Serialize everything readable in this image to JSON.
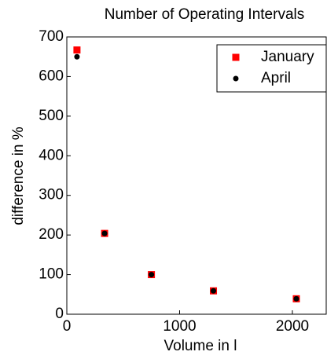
{
  "chart_data": {
    "type": "scatter",
    "title": "Number of Operating Intervals",
    "x_label": "Volume in l",
    "y_label": "difference in %",
    "xlim": [
      0,
      2300
    ],
    "xticks": [
      0,
      1000,
      2000
    ],
    "ylim": [
      0,
      700
    ],
    "yticks": [
      0,
      100,
      200,
      300,
      400,
      500,
      600,
      700
    ],
    "legend": "upper right",
    "series": [
      {
        "name": "January",
        "color": "#ff0000",
        "marker": "square",
        "x": [
          90,
          335,
          750,
          1300,
          2035
        ],
        "values": [
          667,
          204,
          100,
          59,
          39
        ]
      },
      {
        "name": "April",
        "color": "#000000",
        "marker": "circle",
        "x": [
          90,
          335,
          750,
          1300,
          2035
        ],
        "values": [
          650,
          204,
          100,
          59,
          39
        ]
      }
    ]
  }
}
